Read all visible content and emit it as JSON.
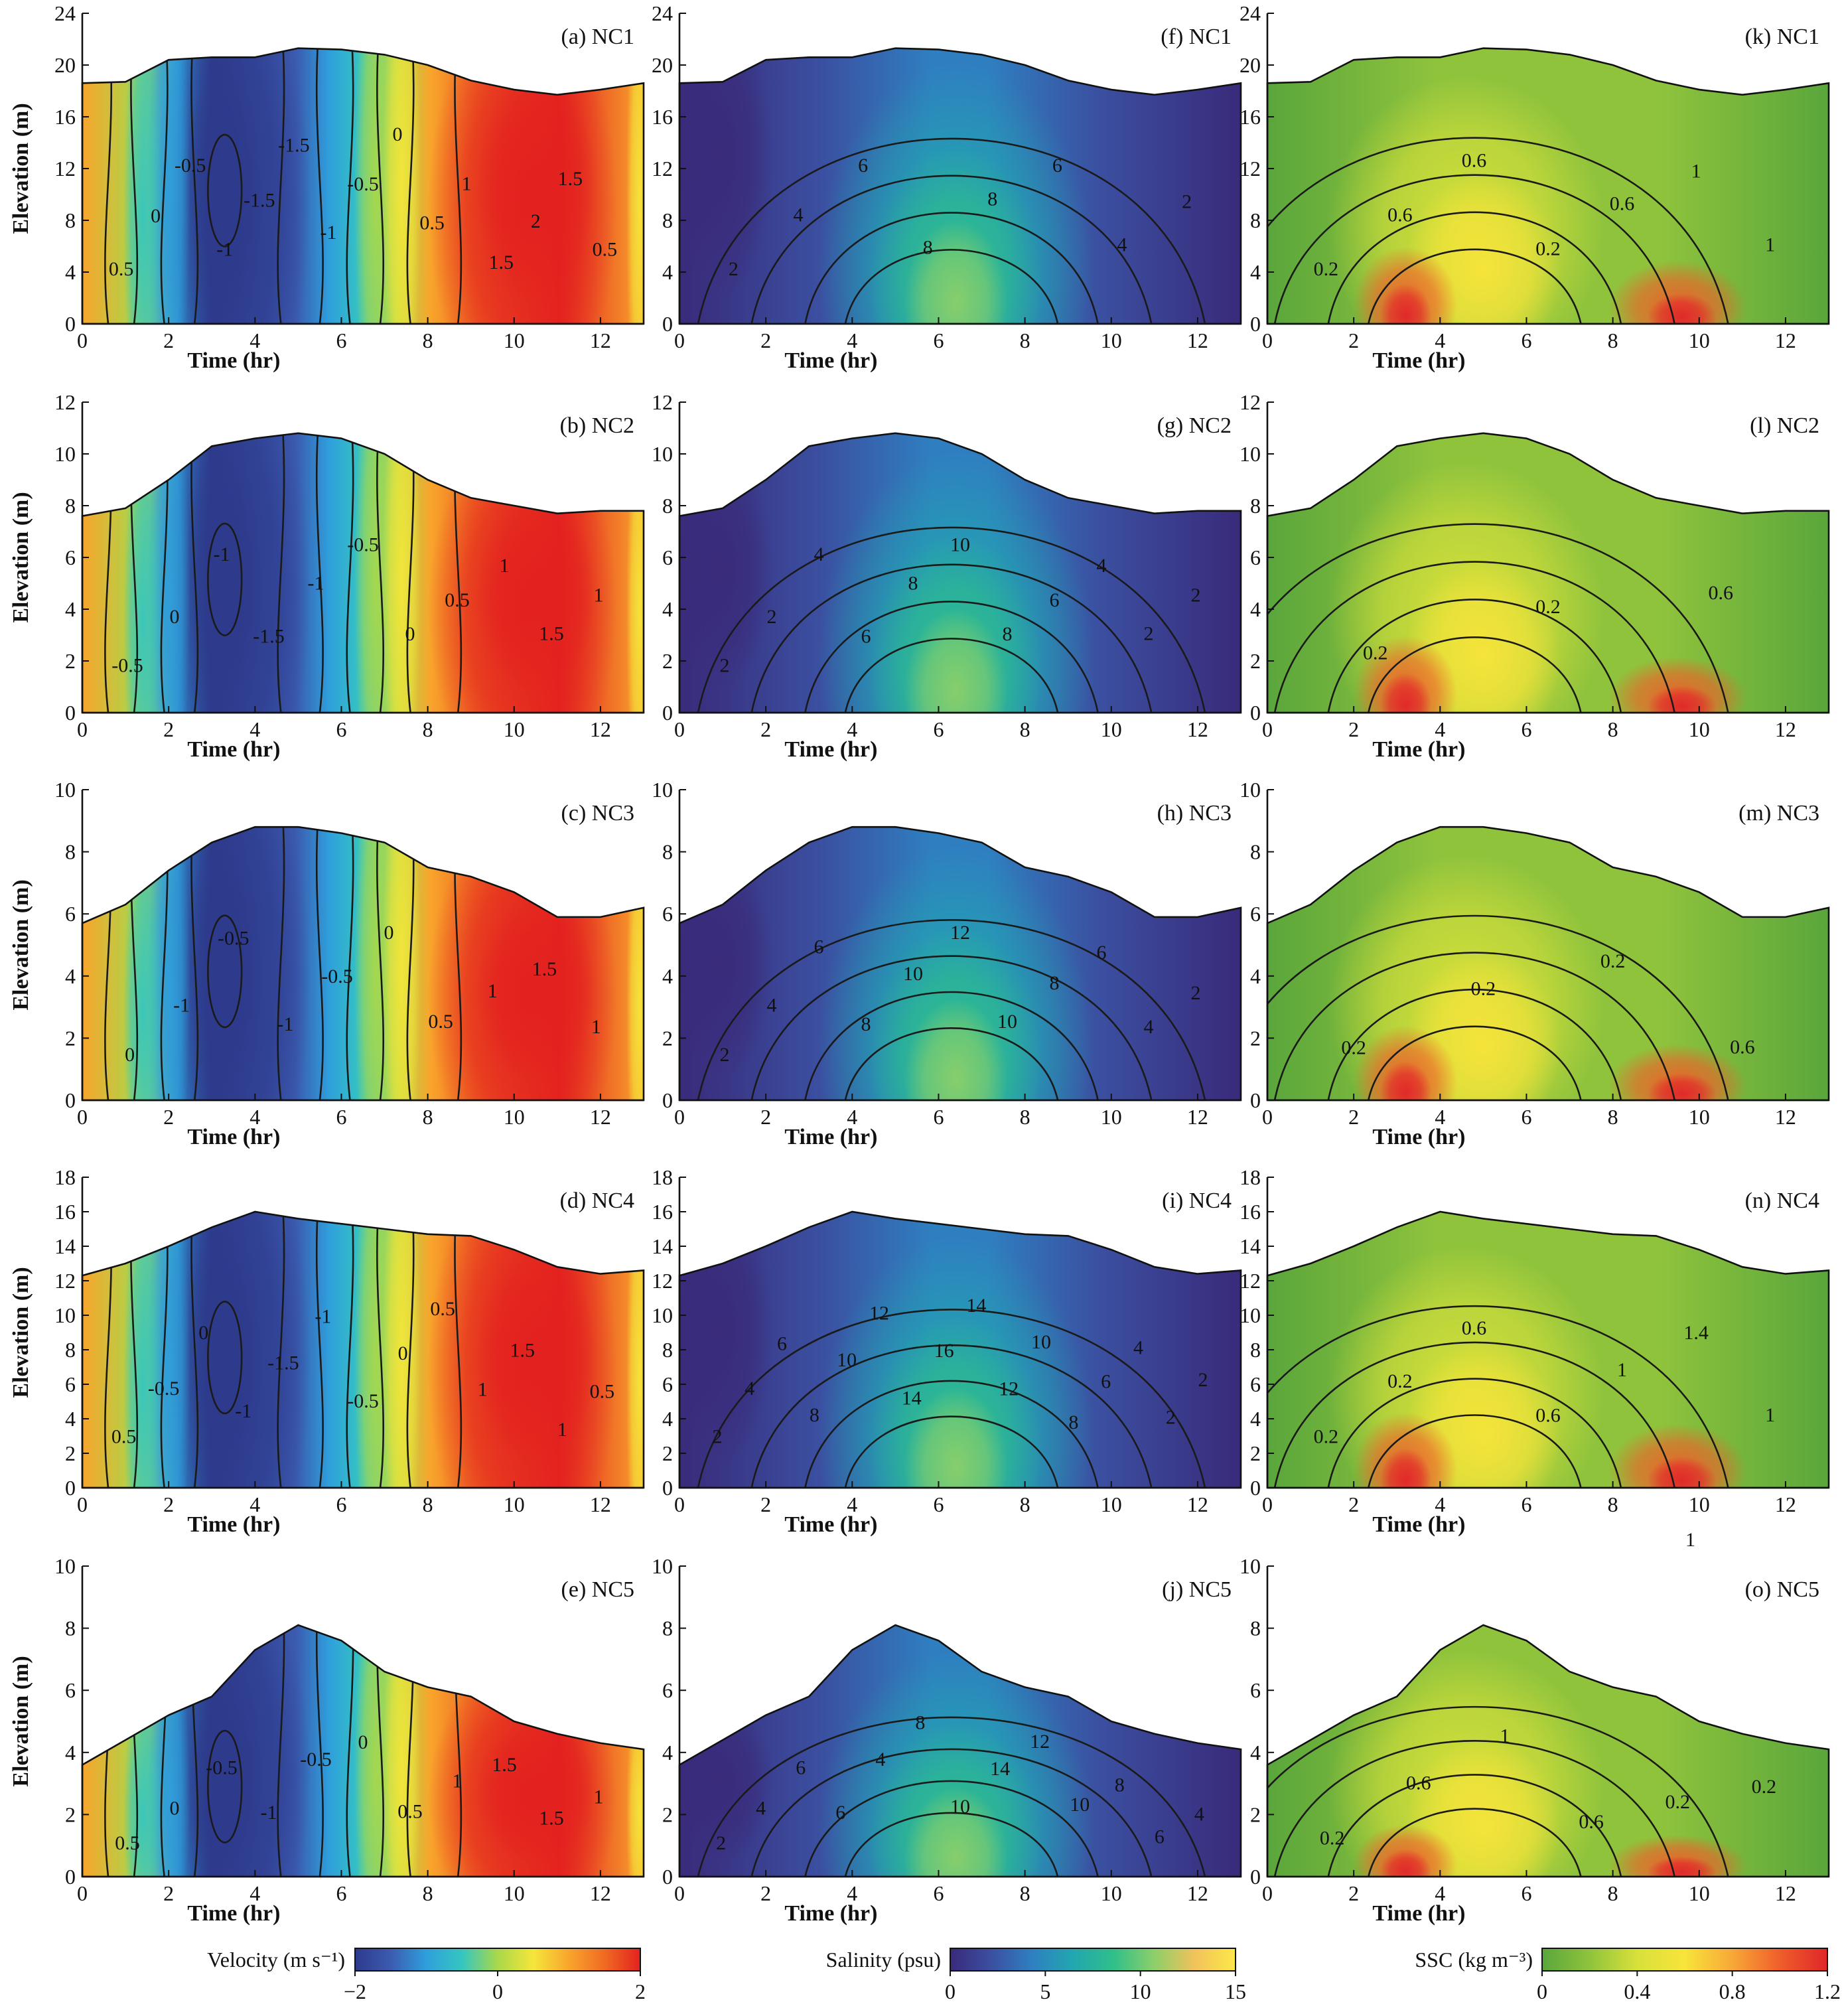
{
  "figure": {
    "time_axis_label": "Time (hr)",
    "elevation_axis_label": "Elevation (m)",
    "time_ticks": [
      0,
      2,
      4,
      6,
      8,
      10,
      12
    ],
    "xlim": [
      0,
      13
    ],
    "stray_label": "1"
  },
  "colorbars": [
    {
      "label": "Velocity (m s⁻¹)",
      "ticks": [
        "−2",
        "0",
        "2"
      ],
      "range": [
        -2,
        2
      ],
      "stops": [
        "#2e3a8c",
        "#3b5bb0",
        "#2f9fdc",
        "#35c6c0",
        "#a9d84a",
        "#f5e63a",
        "#f8a52c",
        "#f06a22",
        "#e3221f"
      ]
    },
    {
      "label": "Salinity (psu)",
      "ticks": [
        "0",
        "5",
        "10",
        "15"
      ],
      "range": [
        0,
        15
      ],
      "stops": [
        "#3a2a7a",
        "#3b4fa0",
        "#2f7fc0",
        "#22a6b0",
        "#2fbf8a",
        "#8ccf6a",
        "#f2c25a",
        "#fde84a"
      ]
    },
    {
      "label": "SSC (kg m⁻³)",
      "ticks": [
        "0",
        "0.4",
        "0.8",
        "1.2"
      ],
      "range": [
        0,
        1.2
      ],
      "stops": [
        "#5aa63c",
        "#8fc33c",
        "#d8e13a",
        "#f8e43a",
        "#f8a838",
        "#ef5e2a",
        "#e0262a"
      ]
    }
  ],
  "chart_data": [
    {
      "type": "contour",
      "panel": "(a) NC1",
      "variable": "velocity",
      "ylim": [
        0,
        24
      ],
      "yticks": [
        0,
        4,
        8,
        12,
        16,
        20,
        24
      ],
      "surface": [
        [
          0,
          18.6
        ],
        [
          1,
          18.7
        ],
        [
          2,
          20.4
        ],
        [
          3,
          20.6
        ],
        [
          4,
          20.6
        ],
        [
          5,
          21.3
        ],
        [
          6,
          21.2
        ],
        [
          7,
          20.8
        ],
        [
          8,
          20.0
        ],
        [
          9,
          18.8
        ],
        [
          10,
          18.1
        ],
        [
          11,
          17.7
        ],
        [
          12,
          18.1
        ],
        [
          13,
          18.6
        ]
      ],
      "contour_labels": [
        "0.5",
        "0",
        "-0.5",
        "-1",
        "-1.5",
        "-1.5",
        "-1",
        "-0.5",
        "0",
        "0.5",
        "1",
        "1.5",
        "2",
        "1.5",
        "0.5"
      ]
    },
    {
      "type": "contour",
      "panel": "(b) NC2",
      "variable": "velocity",
      "ylim": [
        0,
        12
      ],
      "yticks": [
        0,
        2,
        4,
        6,
        8,
        10,
        12
      ],
      "surface": [
        [
          0,
          7.6
        ],
        [
          1,
          7.9
        ],
        [
          2,
          9.0
        ],
        [
          3,
          10.3
        ],
        [
          4,
          10.6
        ],
        [
          5,
          10.8
        ],
        [
          6,
          10.6
        ],
        [
          7,
          10.0
        ],
        [
          8,
          9.0
        ],
        [
          9,
          8.3
        ],
        [
          10,
          8.0
        ],
        [
          11,
          7.7
        ],
        [
          12,
          7.8
        ],
        [
          13,
          7.8
        ]
      ],
      "contour_labels": [
        "-0.5",
        "0",
        "-1",
        "-1.5",
        "-1",
        "-0.5",
        "0",
        "0.5",
        "1",
        "1.5",
        "1"
      ]
    },
    {
      "type": "contour",
      "panel": "(c) NC3",
      "variable": "velocity",
      "ylim": [
        0,
        10
      ],
      "yticks": [
        0,
        2,
        4,
        6,
        8,
        10
      ],
      "surface": [
        [
          0,
          5.7
        ],
        [
          1,
          6.3
        ],
        [
          2,
          7.4
        ],
        [
          3,
          8.3
        ],
        [
          4,
          8.8
        ],
        [
          5,
          8.8
        ],
        [
          6,
          8.6
        ],
        [
          7,
          8.3
        ],
        [
          8,
          7.5
        ],
        [
          9,
          7.2
        ],
        [
          10,
          6.7
        ],
        [
          11,
          5.9
        ],
        [
          12,
          5.9
        ],
        [
          13,
          6.2
        ]
      ],
      "contour_labels": [
        "0",
        "-1",
        "-0.5",
        "-1",
        "-0.5",
        "0",
        "0.5",
        "1",
        "1.5",
        "1"
      ]
    },
    {
      "type": "contour",
      "panel": "(d) NC4",
      "variable": "velocity",
      "ylim": [
        0,
        18
      ],
      "yticks": [
        0,
        2,
        4,
        6,
        8,
        10,
        12,
        14,
        16,
        18
      ],
      "surface": [
        [
          0,
          12.3
        ],
        [
          1,
          13.0
        ],
        [
          2,
          14.0
        ],
        [
          3,
          15.1
        ],
        [
          4,
          16.0
        ],
        [
          5,
          15.6
        ],
        [
          6,
          15.3
        ],
        [
          7,
          15.0
        ],
        [
          8,
          14.7
        ],
        [
          9,
          14.6
        ],
        [
          10,
          13.8
        ],
        [
          11,
          12.8
        ],
        [
          12,
          12.4
        ],
        [
          13,
          12.6
        ]
      ],
      "contour_labels": [
        "0.5",
        "-0.5",
        "0",
        "-1",
        "-1.5",
        "-1",
        "-0.5",
        "0",
        "0.5",
        "1",
        "1.5",
        "1",
        "0.5"
      ]
    },
    {
      "type": "contour",
      "panel": "(e) NC5",
      "variable": "velocity",
      "ylim": [
        0,
        10
      ],
      "yticks": [
        0,
        2,
        4,
        6,
        8,
        10
      ],
      "surface": [
        [
          0,
          3.6
        ],
        [
          1,
          4.4
        ],
        [
          2,
          5.2
        ],
        [
          3,
          5.8
        ],
        [
          4,
          7.3
        ],
        [
          5,
          8.1
        ],
        [
          6,
          7.6
        ],
        [
          7,
          6.6
        ],
        [
          8,
          6.1
        ],
        [
          9,
          5.8
        ],
        [
          10,
          5.0
        ],
        [
          11,
          4.6
        ],
        [
          12,
          4.3
        ],
        [
          13,
          4.1
        ]
      ],
      "contour_labels": [
        "0.5",
        "0",
        "-0.5",
        "-1",
        "-0.5",
        "0",
        "0.5",
        "1",
        "1.5",
        "1.5",
        "1"
      ]
    },
    {
      "type": "contour",
      "panel": "(f) NC1",
      "variable": "salinity",
      "ylim": [
        0,
        24
      ],
      "yticks": [
        0,
        4,
        8,
        12,
        16,
        20,
        24
      ],
      "surface": [
        [
          0,
          18.6
        ],
        [
          1,
          18.7
        ],
        [
          2,
          20.4
        ],
        [
          3,
          20.6
        ],
        [
          4,
          20.6
        ],
        [
          5,
          21.3
        ],
        [
          6,
          21.2
        ],
        [
          7,
          20.8
        ],
        [
          8,
          20.0
        ],
        [
          9,
          18.8
        ],
        [
          10,
          18.1
        ],
        [
          11,
          17.7
        ],
        [
          12,
          18.1
        ],
        [
          13,
          18.6
        ]
      ],
      "contour_labels": [
        "2",
        "4",
        "6",
        "8",
        "8",
        "6",
        "4",
        "2"
      ]
    },
    {
      "type": "contour",
      "panel": "(g) NC2",
      "variable": "salinity",
      "ylim": [
        0,
        12
      ],
      "yticks": [
        0,
        2,
        4,
        6,
        8,
        10,
        12
      ],
      "surface": [
        [
          0,
          7.6
        ],
        [
          1,
          7.9
        ],
        [
          2,
          9.0
        ],
        [
          3,
          10.3
        ],
        [
          4,
          10.6
        ],
        [
          5,
          10.8
        ],
        [
          6,
          10.6
        ],
        [
          7,
          10.0
        ],
        [
          8,
          9.0
        ],
        [
          9,
          8.3
        ],
        [
          10,
          8.0
        ],
        [
          11,
          7.7
        ],
        [
          12,
          7.8
        ],
        [
          13,
          7.8
        ]
      ],
      "contour_labels": [
        "2",
        "2",
        "4",
        "6",
        "8",
        "10",
        "8",
        "6",
        "4",
        "2",
        "2"
      ]
    },
    {
      "type": "contour",
      "panel": "(h) NC3",
      "variable": "salinity",
      "ylim": [
        0,
        10
      ],
      "yticks": [
        0,
        2,
        4,
        6,
        8,
        10
      ],
      "surface": [
        [
          0,
          5.7
        ],
        [
          1,
          6.3
        ],
        [
          2,
          7.4
        ],
        [
          3,
          8.3
        ],
        [
          4,
          8.8
        ],
        [
          5,
          8.8
        ],
        [
          6,
          8.6
        ],
        [
          7,
          8.3
        ],
        [
          8,
          7.5
        ],
        [
          9,
          7.2
        ],
        [
          10,
          6.7
        ],
        [
          11,
          5.9
        ],
        [
          12,
          5.9
        ],
        [
          13,
          6.2
        ]
      ],
      "contour_labels": [
        "2",
        "4",
        "6",
        "8",
        "10",
        "12",
        "10",
        "8",
        "6",
        "4",
        "2"
      ]
    },
    {
      "type": "contour",
      "panel": "(i) NC4",
      "variable": "salinity",
      "ylim": [
        0,
        18
      ],
      "yticks": [
        0,
        2,
        4,
        6,
        8,
        10,
        12,
        14,
        16,
        18
      ],
      "surface": [
        [
          0,
          12.3
        ],
        [
          1,
          13.0
        ],
        [
          2,
          14.0
        ],
        [
          3,
          15.1
        ],
        [
          4,
          16.0
        ],
        [
          5,
          15.6
        ],
        [
          6,
          15.3
        ],
        [
          7,
          15.0
        ],
        [
          8,
          14.7
        ],
        [
          9,
          14.6
        ],
        [
          10,
          13.8
        ],
        [
          11,
          12.8
        ],
        [
          12,
          12.4
        ],
        [
          13,
          12.6
        ]
      ],
      "contour_labels": [
        "2",
        "4",
        "6",
        "8",
        "10",
        "12",
        "14",
        "16",
        "14",
        "12",
        "10",
        "8",
        "6",
        "4",
        "2",
        "2"
      ]
    },
    {
      "type": "contour",
      "panel": "(j) NC5",
      "variable": "salinity",
      "ylim": [
        0,
        10
      ],
      "yticks": [
        0,
        2,
        4,
        6,
        8,
        10
      ],
      "surface": [
        [
          0,
          3.6
        ],
        [
          1,
          4.4
        ],
        [
          2,
          5.2
        ],
        [
          3,
          5.8
        ],
        [
          4,
          7.3
        ],
        [
          5,
          8.1
        ],
        [
          6,
          7.6
        ],
        [
          7,
          6.6
        ],
        [
          8,
          6.1
        ],
        [
          9,
          5.8
        ],
        [
          10,
          5.0
        ],
        [
          11,
          4.6
        ],
        [
          12,
          4.3
        ],
        [
          13,
          4.1
        ]
      ],
      "contour_labels": [
        "2",
        "4",
        "6",
        "6",
        "4",
        "8",
        "10",
        "14",
        "12",
        "10",
        "8",
        "6",
        "4"
      ]
    },
    {
      "type": "contour",
      "panel": "(k) NC1",
      "variable": "ssc",
      "ylim": [
        0,
        24
      ],
      "yticks": [
        0,
        4,
        8,
        12,
        16,
        20,
        24
      ],
      "surface": [
        [
          0,
          18.6
        ],
        [
          1,
          18.7
        ],
        [
          2,
          20.4
        ],
        [
          3,
          20.6
        ],
        [
          4,
          20.6
        ],
        [
          5,
          21.3
        ],
        [
          6,
          21.2
        ],
        [
          7,
          20.8
        ],
        [
          8,
          20.0
        ],
        [
          9,
          18.8
        ],
        [
          10,
          18.1
        ],
        [
          11,
          17.7
        ],
        [
          12,
          18.1
        ],
        [
          13,
          18.6
        ]
      ],
      "contour_labels": [
        "0.2",
        "0.6",
        "0.6",
        "0.2",
        "0.6",
        "1",
        "1"
      ]
    },
    {
      "type": "contour",
      "panel": "(l) NC2",
      "variable": "ssc",
      "ylim": [
        0,
        12
      ],
      "yticks": [
        0,
        2,
        4,
        6,
        8,
        10,
        12
      ],
      "surface": [
        [
          0,
          7.6
        ],
        [
          1,
          7.9
        ],
        [
          2,
          9.0
        ],
        [
          3,
          10.3
        ],
        [
          4,
          10.6
        ],
        [
          5,
          10.8
        ],
        [
          6,
          10.6
        ],
        [
          7,
          10.0
        ],
        [
          8,
          9.0
        ],
        [
          9,
          8.3
        ],
        [
          10,
          8.0
        ],
        [
          11,
          7.7
        ],
        [
          12,
          7.8
        ],
        [
          13,
          7.8
        ]
      ],
      "contour_labels": [
        "0.2",
        "0.2",
        "0.6"
      ]
    },
    {
      "type": "contour",
      "panel": "(m) NC3",
      "variable": "ssc",
      "ylim": [
        0,
        10
      ],
      "yticks": [
        0,
        2,
        4,
        6,
        8,
        10
      ],
      "surface": [
        [
          0,
          5.7
        ],
        [
          1,
          6.3
        ],
        [
          2,
          7.4
        ],
        [
          3,
          8.3
        ],
        [
          4,
          8.8
        ],
        [
          5,
          8.8
        ],
        [
          6,
          8.6
        ],
        [
          7,
          8.3
        ],
        [
          8,
          7.5
        ],
        [
          9,
          7.2
        ],
        [
          10,
          6.7
        ],
        [
          11,
          5.9
        ],
        [
          12,
          5.9
        ],
        [
          13,
          6.2
        ]
      ],
      "contour_labels": [
        "0.2",
        "0.2",
        "0.2",
        "0.6"
      ]
    },
    {
      "type": "contour",
      "panel": "(n) NC4",
      "variable": "ssc",
      "ylim": [
        0,
        18
      ],
      "yticks": [
        0,
        2,
        4,
        6,
        8,
        10,
        12,
        14,
        16,
        18
      ],
      "surface": [
        [
          0,
          12.3
        ],
        [
          1,
          13.0
        ],
        [
          2,
          14.0
        ],
        [
          3,
          15.1
        ],
        [
          4,
          16.0
        ],
        [
          5,
          15.6
        ],
        [
          6,
          15.3
        ],
        [
          7,
          15.0
        ],
        [
          8,
          14.7
        ],
        [
          9,
          14.6
        ],
        [
          10,
          13.8
        ],
        [
          11,
          12.8
        ],
        [
          12,
          12.4
        ],
        [
          13,
          12.6
        ]
      ],
      "contour_labels": [
        "0.2",
        "0.2",
        "0.6",
        "0.6",
        "1",
        "1.4",
        "1"
      ]
    },
    {
      "type": "contour",
      "panel": "(o) NC5",
      "variable": "ssc",
      "ylim": [
        0,
        10
      ],
      "yticks": [
        0,
        2,
        4,
        6,
        8,
        10
      ],
      "surface": [
        [
          0,
          3.6
        ],
        [
          1,
          4.4
        ],
        [
          2,
          5.2
        ],
        [
          3,
          5.8
        ],
        [
          4,
          7.3
        ],
        [
          5,
          8.1
        ],
        [
          6,
          7.6
        ],
        [
          7,
          6.6
        ],
        [
          8,
          6.1
        ],
        [
          9,
          5.8
        ],
        [
          10,
          5.0
        ],
        [
          11,
          4.6
        ],
        [
          12,
          4.3
        ],
        [
          13,
          4.1
        ]
      ],
      "contour_labels": [
        "0.2",
        "0.6",
        "1",
        "0.6",
        "0.2",
        "0.2"
      ]
    }
  ]
}
